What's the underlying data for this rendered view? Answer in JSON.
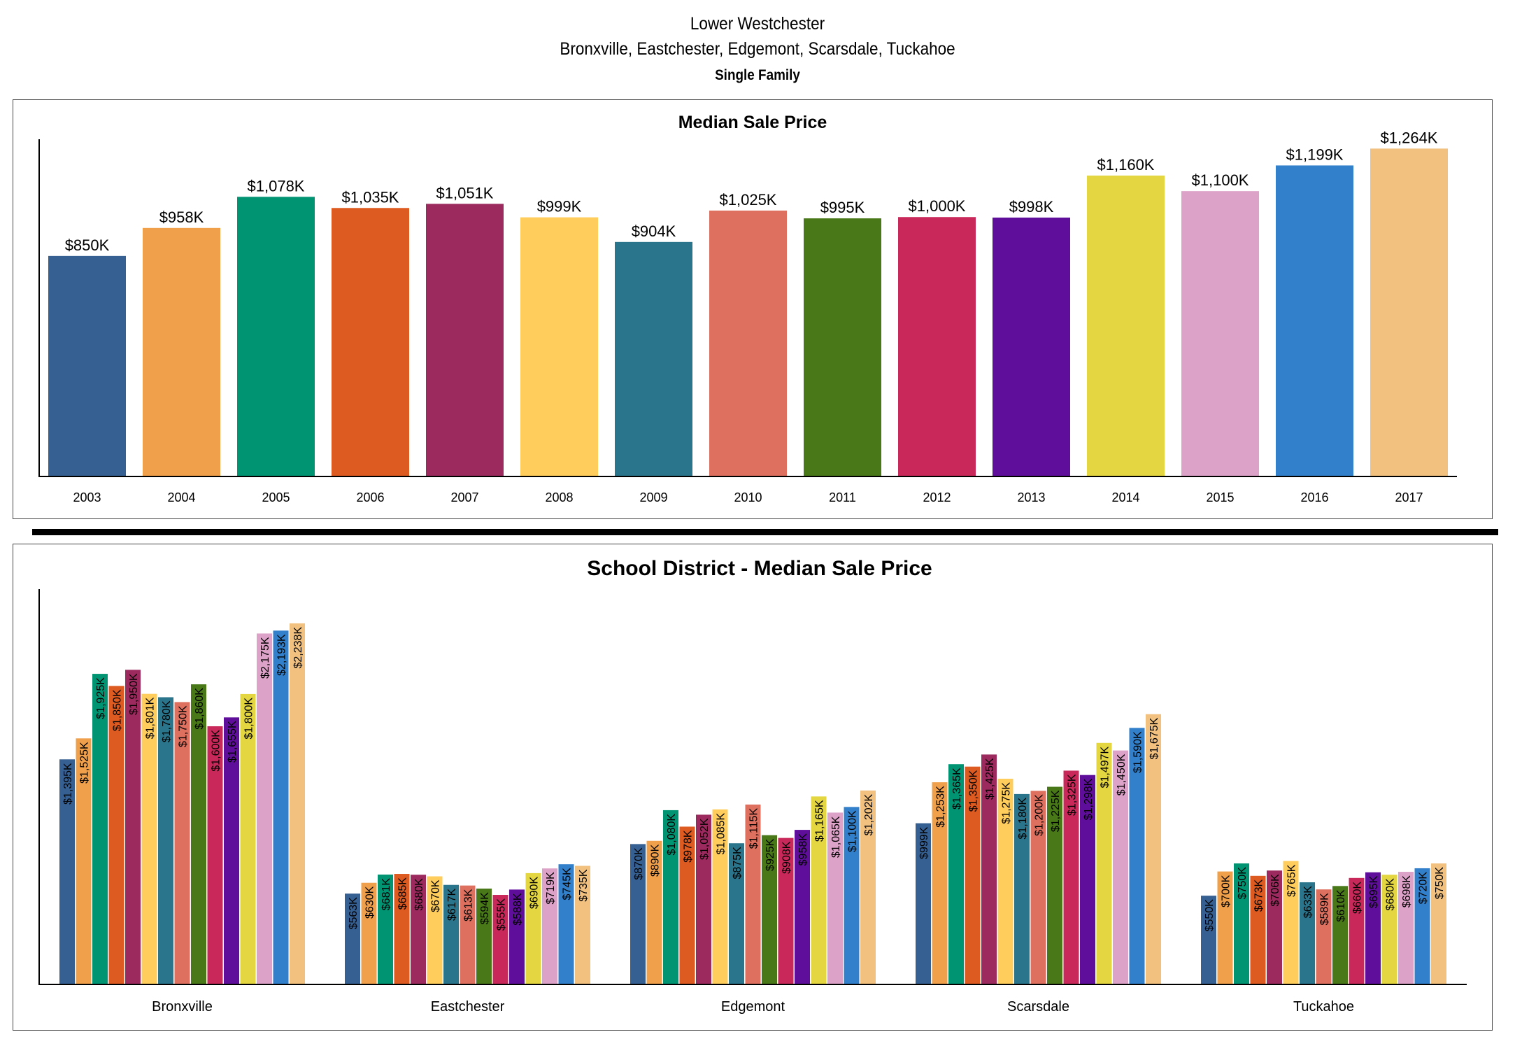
{
  "header": {
    "title": "Lower Westchester",
    "subtitle": "Bronxville, Eastchester, Edgemont, Scarsdale, Tuckahoe",
    "property_type": "Single Family"
  },
  "colors": [
    "#376092",
    "#F0A04B",
    "#009473",
    "#DD5A20",
    "#9C2A5E",
    "#FFCD5C",
    "#2A758C",
    "#DE7060",
    "#487818",
    "#C9285A",
    "#5F0E9C",
    "#E3D641",
    "#DDA2C8",
    "#3280CB",
    "#F2C17F"
  ],
  "chart_data": [
    {
      "type": "bar",
      "title": "Median Sale Price",
      "categories": [
        "2003",
        "2004",
        "2005",
        "2006",
        "2007",
        "2008",
        "2009",
        "2010",
        "2011",
        "2012",
        "2013",
        "2014",
        "2015",
        "2016",
        "2017"
      ],
      "values": [
        850,
        958,
        1078,
        1035,
        1051,
        999,
        904,
        1025,
        995,
        1000,
        998,
        1160,
        1100,
        1199,
        1264
      ],
      "labels": [
        "$850K",
        "$958K",
        "$1,078K",
        "$1,035K",
        "$1,051K",
        "$999K",
        "$904K",
        "$1,025K",
        "$995K",
        "$1,000K",
        "$998K",
        "$1,160K",
        "$1,100K",
        "$1,199K",
        "$1,264K"
      ],
      "unit": "$K",
      "ylim": [
        0,
        1300
      ],
      "grid": false
    },
    {
      "type": "bar",
      "title": "School District - Median Sale Price",
      "categories": [
        "Bronxville",
        "Eastchester",
        "Edgemont",
        "Scarsdale",
        "Tuckahoe"
      ],
      "series_years": [
        "2003",
        "2004",
        "2005",
        "2006",
        "2007",
        "2008",
        "2009",
        "2010",
        "2011",
        "2012",
        "2013",
        "2014",
        "2015",
        "2016",
        "2017"
      ],
      "values": [
        [
          1395,
          1525,
          1925,
          1850,
          1950,
          1801,
          1780,
          1750,
          1860,
          1600,
          1655,
          1800,
          2175,
          2193,
          2238
        ],
        [
          563,
          630,
          681,
          685,
          680,
          670,
          617,
          613,
          594,
          555,
          588,
          690,
          719,
          745,
          735
        ],
        [
          870,
          890,
          1080,
          978,
          1052,
          1085,
          875,
          1115,
          925,
          908,
          958,
          1165,
          1065,
          1100,
          1202
        ],
        [
          999,
          1253,
          1365,
          1350,
          1425,
          1275,
          1180,
          1200,
          1225,
          1325,
          1298,
          1497,
          1450,
          1590,
          1675
        ],
        [
          550,
          700,
          750,
          673,
          706,
          765,
          633,
          589,
          610,
          660,
          695,
          680,
          698,
          720,
          750
        ]
      ],
      "labels": [
        [
          "$1,395K",
          "$1,525K",
          "$1,925K",
          "$1,850K",
          "$1,950K",
          "$1,801K",
          "$1,780K",
          "$1,750K",
          "$1,860K",
          "$1,600K",
          "$1,655K",
          "$1,800K",
          "$2,175K",
          "$2,193K",
          "$2,238K"
        ],
        [
          "$563K",
          "$630K",
          "$681K",
          "$685K",
          "$680K",
          "$670K",
          "$617K",
          "$613K",
          "$594K",
          "$555K",
          "$588K",
          "$690K",
          "$719K",
          "$745K",
          "$735K"
        ],
        [
          "$870K",
          "$890K",
          "$1,080K",
          "$978K",
          "$1,052K",
          "$1,085K",
          "$875K",
          "$1,115K",
          "$925K",
          "$908K",
          "$958K",
          "$1,165K",
          "$1,065K",
          "$1,100K",
          "$1,202K"
        ],
        [
          "$999K",
          "$1,253K",
          "$1,365K",
          "$1,350K",
          "$1,425K",
          "$1,275K",
          "$1,180K",
          "$1,200K",
          "$1,225K",
          "$1,325K",
          "$1,298K",
          "$1,497K",
          "$1,450K",
          "$1,590K",
          "$1,675K"
        ],
        [
          "$550K",
          "$700K",
          "$750K",
          "$673K",
          "$706K",
          "$765K",
          "$633K",
          "$589K",
          "$610K",
          "$660K",
          "$695K",
          "$680K",
          "$698K",
          "$720K",
          "$750K"
        ]
      ],
      "unit": "$K",
      "ylim": [
        0,
        2450
      ],
      "grid": false
    }
  ]
}
